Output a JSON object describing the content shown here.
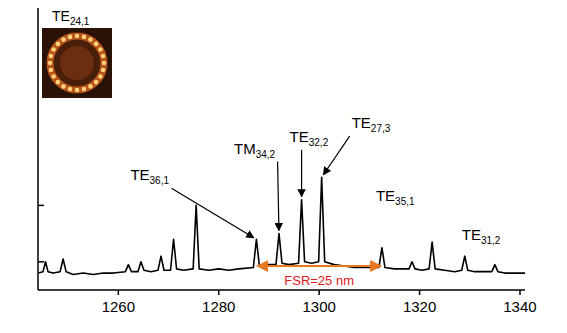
{
  "chart_data": {
    "type": "line",
    "color": "#000000",
    "xlim": [
      1244,
      1341
    ],
    "xticks": [
      1260,
      1280,
      1300,
      1320,
      1340
    ],
    "ylim": [
      0,
      1
    ],
    "yticks": [
      0.1,
      0.3
    ],
    "tick_labels": "x",
    "x": [
      1244,
      1245,
      1245.5,
      1246,
      1247,
      1248.4,
      1249,
      1249.6,
      1251,
      1253,
      1255,
      1257,
      1259,
      1261.4,
      1262,
      1262.6,
      1263.9,
      1264.5,
      1265.1,
      1266.5,
      1267.9,
      1268.5,
      1269.1,
      1270.4,
      1271,
      1271.6,
      1273,
      1274.9,
      1275.5,
      1276.1,
      1278,
      1280,
      1282,
      1284,
      1286.9,
      1287.5,
      1288.1,
      1289.5,
      1291.4,
      1292,
      1292.6,
      1294,
      1295.9,
      1296.5,
      1297.1,
      1298.5,
      1299.9,
      1300.5,
      1301.1,
      1303,
      1305,
      1307,
      1309,
      1311.9,
      1312.5,
      1313.1,
      1315,
      1317.9,
      1318.5,
      1319.1,
      1320.5,
      1321.9,
      1322.5,
      1323.1,
      1325,
      1327,
      1328.4,
      1329,
      1329.6,
      1331,
      1333,
      1334.4,
      1335,
      1335.6,
      1337,
      1339,
      1341
    ],
    "values": [
      0.06,
      0.065,
      0.1,
      0.065,
      0.06,
      0.065,
      0.11,
      0.065,
      0.055,
      0.06,
      0.055,
      0.06,
      0.06,
      0.065,
      0.09,
      0.065,
      0.065,
      0.1,
      0.07,
      0.065,
      0.07,
      0.12,
      0.07,
      0.07,
      0.18,
      0.075,
      0.07,
      0.075,
      0.3,
      0.075,
      0.07,
      0.075,
      0.07,
      0.075,
      0.08,
      0.18,
      0.085,
      0.09,
      0.09,
      0.2,
      0.095,
      0.09,
      0.095,
      0.32,
      0.1,
      0.095,
      0.1,
      0.4,
      0.1,
      0.09,
      0.085,
      0.08,
      0.08,
      0.08,
      0.15,
      0.08,
      0.075,
      0.075,
      0.1,
      0.075,
      0.07,
      0.075,
      0.17,
      0.075,
      0.07,
      0.065,
      0.07,
      0.12,
      0.07,
      0.065,
      0.065,
      0.065,
      0.09,
      0.065,
      0.06,
      0.06,
      0.06
    ],
    "annotations": [
      {
        "label": "TE",
        "sub": "36,1",
        "x": 1287.5,
        "y": 0.18
      },
      {
        "label": "TM",
        "sub": "34,2",
        "x": 1292,
        "y": 0.2
      },
      {
        "label": "TE",
        "sub": "32,2",
        "x": 1296.5,
        "y": 0.32
      },
      {
        "label": "TE",
        "sub": "27,3",
        "x": 1300.5,
        "y": 0.4
      },
      {
        "label": "TE",
        "sub": "35,1",
        "x": 1312.5,
        "y": 0.15
      },
      {
        "label": "TE",
        "sub": "31,2",
        "x": 1329,
        "y": 0.12
      }
    ],
    "fsr": {
      "label": "FSR=25 nm",
      "from": 1287.5,
      "to": 1312.5,
      "y": 0.085,
      "color": "#e8771e"
    },
    "inset": {
      "label": "TE",
      "sub": "24,1"
    }
  }
}
